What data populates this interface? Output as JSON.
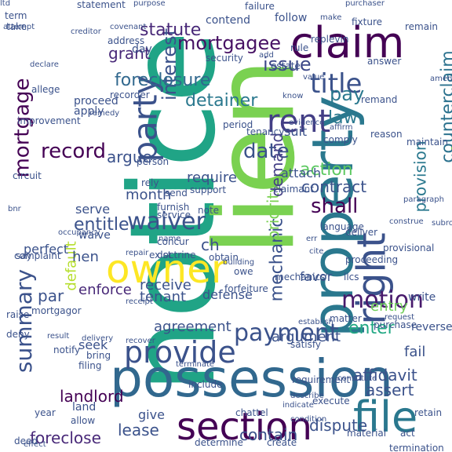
{
  "words": [
    {
      "text": "notice",
      "color": "#20a486",
      "rot": 1
    },
    {
      "text": "lien",
      "color": "#7ad151",
      "rot": 1
    },
    {
      "text": "claim",
      "color": "#440154",
      "rot": 0
    },
    {
      "text": "property",
      "color": "#2a788e",
      "rot": 1
    },
    {
      "text": "premise",
      "color": "#7ad151",
      "rot": 1
    },
    {
      "text": "possession",
      "color": "#31688e",
      "rot": 0
    },
    {
      "text": "right",
      "color": "#3b528b",
      "rot": 1
    },
    {
      "text": "party",
      "color": "#3b528b",
      "rot": 1
    },
    {
      "text": "owner",
      "color": "#fde725",
      "rot": 0
    },
    {
      "text": "file",
      "color": "#2a788e",
      "rot": 0
    },
    {
      "text": "section",
      "color": "#440154",
      "rot": 0
    },
    {
      "text": "rent",
      "color": "#433e85",
      "rot": 0
    },
    {
      "text": "title",
      "color": "#3b528b",
      "rot": 0
    },
    {
      "text": "provide",
      "color": "#3b528b",
      "rot": 0
    },
    {
      "text": "mortgage",
      "color": "#440154",
      "rot": 1
    },
    {
      "text": "summary",
      "color": "#3b528b",
      "rot": 1
    },
    {
      "text": "interest",
      "color": "#3b528b",
      "rot": 1
    },
    {
      "text": "payment",
      "color": "#3b528b",
      "rot": 0
    },
    {
      "text": "waiver",
      "color": "#3b528b",
      "rot": 0
    },
    {
      "text": "mortgagee",
      "color": "#471164",
      "rot": 0
    },
    {
      "text": "foreclosure",
      "color": "#31688e",
      "rot": 0
    },
    {
      "text": "counterclaim",
      "color": "#2c728e",
      "rot": 1
    },
    {
      "text": "motion",
      "color": "#481a6c",
      "rot": 0
    },
    {
      "text": "record",
      "color": "#440154",
      "rot": 0
    },
    {
      "text": "issue",
      "color": "#3e4989",
      "rot": 0
    },
    {
      "text": "pay",
      "color": "#2a788e",
      "rot": 0
    },
    {
      "text": "date",
      "color": "#3b528b",
      "rot": 0
    },
    {
      "text": "law",
      "color": "#2a788e",
      "rot": 0
    },
    {
      "text": "shall",
      "color": "#440154",
      "rot": 0
    },
    {
      "text": "enter",
      "color": "#22a884",
      "rot": 0
    },
    {
      "text": "fail",
      "color": "#3b528b",
      "rot": 0
    },
    {
      "text": "entitle",
      "color": "#3b528b",
      "rot": 0
    },
    {
      "text": "grant",
      "color": "#482878",
      "rot": 0
    },
    {
      "text": "detainer",
      "color": "#2a788e",
      "rot": 0
    },
    {
      "text": "action",
      "color": "#5ec962",
      "rot": 0
    },
    {
      "text": "contract",
      "color": "#3b528b",
      "rot": 0
    },
    {
      "text": "argue",
      "color": "#3b528b",
      "rot": 0
    },
    {
      "text": "mechanic",
      "color": "#3b528b",
      "rot": 1
    },
    {
      "text": "priority",
      "color": "#7ad151",
      "rot": 1
    },
    {
      "text": "demand",
      "color": "#433e85",
      "rot": 1
    },
    {
      "text": "provision",
      "color": "#2a788e",
      "rot": 1
    },
    {
      "text": "default",
      "color": "#b5de2b",
      "rot": 1
    },
    {
      "text": "foreclose",
      "color": "#482878",
      "rot": 0
    },
    {
      "text": "dispute",
      "color": "#3b528b",
      "rot": 0
    },
    {
      "text": "contain",
      "color": "#3b528b",
      "rot": 0
    },
    {
      "text": "lease",
      "color": "#3b528b",
      "rot": 0
    },
    {
      "text": "agreement",
      "color": "#3b528b",
      "rot": 0
    },
    {
      "text": "affidavit",
      "color": "#3b528b",
      "rot": 0
    },
    {
      "text": "assert",
      "color": "#3b528b",
      "rot": 0
    },
    {
      "text": "entry",
      "color": "#6ece58",
      "rot": 0
    },
    {
      "text": "argument",
      "color": "#3b528b",
      "rot": 0
    },
    {
      "text": "tenant",
      "color": "#3b528b",
      "rot": 0
    },
    {
      "text": "enforce",
      "color": "#482878",
      "rot": 0
    },
    {
      "text": "receive",
      "color": "#3b528b",
      "rot": 0
    },
    {
      "text": "require",
      "color": "#3b528b",
      "rot": 0
    },
    {
      "text": "landlord",
      "color": "#440154",
      "rot": 0
    },
    {
      "text": "statute",
      "color": "#482878",
      "rot": 0
    },
    {
      "text": "month",
      "color": "#3b528b",
      "rot": 0
    },
    {
      "text": "ch",
      "color": "#3b528b",
      "rot": 0
    },
    {
      "text": "par",
      "color": "#3b528b",
      "rot": 0
    },
    {
      "text": "hen",
      "color": "#3b528b",
      "rot": 0
    },
    {
      "text": "seek",
      "color": "#3b528b",
      "rot": 0
    },
    {
      "text": "give",
      "color": "#3b528b",
      "rot": 0
    },
    {
      "text": "defense",
      "color": "#3b528b",
      "rot": 0
    },
    {
      "text": "favor",
      "color": "#3b528b",
      "rot": 0
    },
    {
      "text": "attach",
      "color": "#3b528b",
      "rot": 0
    },
    {
      "text": "suit",
      "color": "#3b528b",
      "rot": 0
    },
    {
      "text": "follow",
      "color": "#3b528b",
      "rot": 0
    },
    {
      "text": "contend",
      "color": "#3b528b",
      "rot": 0
    },
    {
      "text": "security",
      "color": "#3b528b",
      "rot": 0
    },
    {
      "text": "day",
      "color": "#3b528b",
      "rot": 0
    },
    {
      "text": "apply",
      "color": "#3b528b",
      "rot": 0
    },
    {
      "text": "proceed",
      "color": "#3b528b",
      "rot": 0
    },
    {
      "text": "serve",
      "color": "#3b528b",
      "rot": 0
    },
    {
      "text": "waive",
      "color": "#3b528b",
      "rot": 0
    },
    {
      "text": "perfect",
      "color": "#3b528b",
      "rot": 0
    },
    {
      "text": "complaint",
      "color": "#3b528b",
      "rot": 0
    },
    {
      "text": "person",
      "color": "#3b528b",
      "rot": 0
    },
    {
      "text": "period",
      "color": "#3b528b",
      "rot": 0
    },
    {
      "text": "reason",
      "color": "#3b528b",
      "rot": 0
    },
    {
      "text": "tenancy",
      "color": "#3b528b",
      "rot": 0
    },
    {
      "text": "claimant",
      "color": "#3b528b",
      "rot": 0
    },
    {
      "text": "deliver",
      "color": "#3b528b",
      "rot": 0
    },
    {
      "text": "language",
      "color": "#3b528b",
      "rot": 0
    },
    {
      "text": "proceeding",
      "color": "#3b528b",
      "rot": 0
    },
    {
      "text": "mortgagor",
      "color": "#3b528b",
      "rot": 0
    },
    {
      "text": "deny",
      "color": "#3b528b",
      "rot": 0
    },
    {
      "text": "notify",
      "color": "#3b528b",
      "rot": 0
    },
    {
      "text": "raise",
      "color": "#3b528b",
      "rot": 0
    },
    {
      "text": "bring",
      "color": "#3b528b",
      "rot": 0
    },
    {
      "text": "filing",
      "color": "#3b528b",
      "rot": 0
    },
    {
      "text": "write",
      "color": "#3b528b",
      "rot": 0
    },
    {
      "text": "reverse",
      "color": "#3b528b",
      "rot": 0
    },
    {
      "text": "mechanics'",
      "color": "#3b528b",
      "rot": 0
    },
    {
      "text": "llcs",
      "color": "#3b528b",
      "rot": 0
    },
    {
      "text": "satisfy",
      "color": "#3b528b",
      "rot": 0
    },
    {
      "text": "include",
      "color": "#3b528b",
      "rot": 0
    },
    {
      "text": "requirement",
      "color": "#3b528b",
      "rot": 0
    },
    {
      "text": "land",
      "color": "#3b528b",
      "rot": 0
    },
    {
      "text": "allow",
      "color": "#3b528b",
      "rot": 0
    },
    {
      "text": "determine",
      "color": "#3b528b",
      "rot": 0
    },
    {
      "text": "create",
      "color": "#3b528b",
      "rot": 0
    },
    {
      "text": "execute",
      "color": "#3b528b",
      "rot": 0
    },
    {
      "text": "retain",
      "color": "#3b528b",
      "rot": 0
    },
    {
      "text": "material",
      "color": "#3b528b",
      "rot": 0
    },
    {
      "text": "term",
      "color": "#3b528b",
      "rot": 0
    },
    {
      "text": "statement",
      "color": "#3b528b",
      "rot": 0
    },
    {
      "text": "take",
      "color": "#3b528b",
      "rot": 0
    },
    {
      "text": "purpose",
      "color": "#3b528b",
      "rot": 0
    },
    {
      "text": "creditor",
      "color": "#3b528b",
      "rot": 0
    },
    {
      "text": "address",
      "color": "#3b528b",
      "rot": 0
    },
    {
      "text": "recorder",
      "color": "#3b528b",
      "rot": 0
    },
    {
      "text": "failure",
      "color": "#3b528b",
      "rot": 0
    },
    {
      "text": "fixture",
      "color": "#3b528b",
      "rot": 0
    },
    {
      "text": "remain",
      "color": "#3b528b",
      "rot": 0
    },
    {
      "text": "purchaser",
      "color": "#3b528b",
      "rot": 0
    },
    {
      "text": "replevin",
      "color": "#3b528b",
      "rot": 0
    },
    {
      "text": "rule",
      "color": "#3b528b",
      "rot": 0
    },
    {
      "text": "estate",
      "color": "#3b528b",
      "rot": 0
    },
    {
      "text": "answer",
      "color": "#3b528b",
      "rot": 0
    },
    {
      "text": "remand",
      "color": "#3b528b",
      "rot": 0
    },
    {
      "text": "affirm",
      "color": "#3b528b",
      "rot": 0
    },
    {
      "text": "comply",
      "color": "#3b528b",
      "rot": 0
    },
    {
      "text": "maintain",
      "color": "#3b528b",
      "rot": 0
    },
    {
      "text": "circuit",
      "color": "#3b528b",
      "rot": 0
    },
    {
      "text": "improvement",
      "color": "#3b528b",
      "rot": 0
    },
    {
      "text": "allege",
      "color": "#3b528b",
      "rot": 0
    },
    {
      "text": "rely",
      "color": "#3b528b",
      "rot": 0
    },
    {
      "text": "send",
      "color": "#3b528b",
      "rot": 0
    },
    {
      "text": "support",
      "color": "#3b528b",
      "rot": 0
    },
    {
      "text": "furnish",
      "color": "#3b528b",
      "rot": 0
    },
    {
      "text": "service",
      "color": "#3b528b",
      "rot": 0
    },
    {
      "text": "note",
      "color": "#3b528b",
      "rot": 0
    },
    {
      "text": "concur",
      "color": "#3b528b",
      "rot": 0
    },
    {
      "text": "exist",
      "color": "#3b528b",
      "rot": 0
    },
    {
      "text": "doctrine",
      "color": "#3b528b",
      "rot": 0
    },
    {
      "text": "obtain",
      "color": "#3b528b",
      "rot": 0
    },
    {
      "text": "owe",
      "color": "#3b528b",
      "rot": 0
    },
    {
      "text": "forfeiture",
      "color": "#3b528b",
      "rot": 0
    },
    {
      "text": "matter",
      "color": "#3b528b",
      "rot": 0
    },
    {
      "text": "purchase",
      "color": "#3b528b",
      "rot": 0
    },
    {
      "text": "provisional",
      "color": "#3b528b",
      "rot": 0
    },
    {
      "text": "say",
      "color": "#3b528b",
      "rot": 0
    },
    {
      "text": "deed",
      "color": "#3b528b",
      "rot": 0
    },
    {
      "text": "year",
      "color": "#3b528b",
      "rot": 0
    },
    {
      "text": "chattel",
      "color": "#3b528b",
      "rot": 0
    },
    {
      "text": "act",
      "color": "#3b528b",
      "rot": 0
    },
    {
      "text": "termination",
      "color": "#3b528b",
      "rot": 0
    },
    {
      "text": "evidence",
      "color": "#3b528b",
      "rot": 0
    },
    {
      "text": "value",
      "color": "#3b528b",
      "rot": 0
    },
    {
      "text": "add",
      "color": "#3b528b",
      "rot": 0
    },
    {
      "text": "covenant",
      "color": "#3b528b",
      "rot": 0
    },
    {
      "text": "attempt",
      "color": "#3b528b",
      "rot": 0
    },
    {
      "text": "declare",
      "color": "#3b528b",
      "rot": 0
    },
    {
      "text": "remedy",
      "color": "#3b528b",
      "rot": 0
    },
    {
      "text": "subrogation",
      "color": "#3b528b",
      "rot": 0
    },
    {
      "text": "paragraph",
      "color": "#3b528b",
      "rot": 0
    },
    {
      "text": "terminate",
      "color": "#3b528b",
      "rot": 0
    },
    {
      "text": "indicate",
      "color": "#3b528b",
      "rot": 0
    },
    {
      "text": "establish",
      "color": "#3b528b",
      "rot": 0
    },
    {
      "text": "request",
      "color": "#3b528b",
      "rot": 0
    },
    {
      "text": "recover",
      "color": "#3b528b",
      "rot": 0
    },
    {
      "text": "delivery",
      "color": "#3b528b",
      "rot": 0
    },
    {
      "text": "result",
      "color": "#3b528b",
      "rot": 0
    },
    {
      "text": "effect",
      "color": "#3b528b",
      "rot": 0
    },
    {
      "text": "repair",
      "color": "#3b528b",
      "rot": 0
    },
    {
      "text": "occupancy",
      "color": "#3b528b",
      "rot": 0
    },
    {
      "text": "construe",
      "color": "#3b528b",
      "rot": 0
    },
    {
      "text": "err",
      "color": "#3b528b",
      "rot": 0
    },
    {
      "text": "cite",
      "color": "#3b528b",
      "rot": 0
    },
    {
      "text": "make",
      "color": "#3b528b",
      "rot": 0
    },
    {
      "text": "amend",
      "color": "#3b528b",
      "rot": 0
    },
    {
      "text": "know",
      "color": "#3b528b",
      "rot": 0
    },
    {
      "text": "describe",
      "color": "#3b528b",
      "rot": 0
    },
    {
      "text": "constitute",
      "color": "#3b528b",
      "rot": 0
    },
    {
      "text": "receipt",
      "color": "#3b528b",
      "rot": 0
    },
    {
      "text": "building",
      "color": "#3b528b",
      "rot": 0
    },
    {
      "text": "condition",
      "color": "#3b528b",
      "rot": 0
    },
    {
      "text": "name",
      "color": "#3b528b",
      "rot": 0
    },
    {
      "text": "bnr",
      "color": "#3b528b",
      "rot": 0
    },
    {
      "text": "ltd",
      "color": "#3b528b",
      "rot": 0
    }
  ]
}
